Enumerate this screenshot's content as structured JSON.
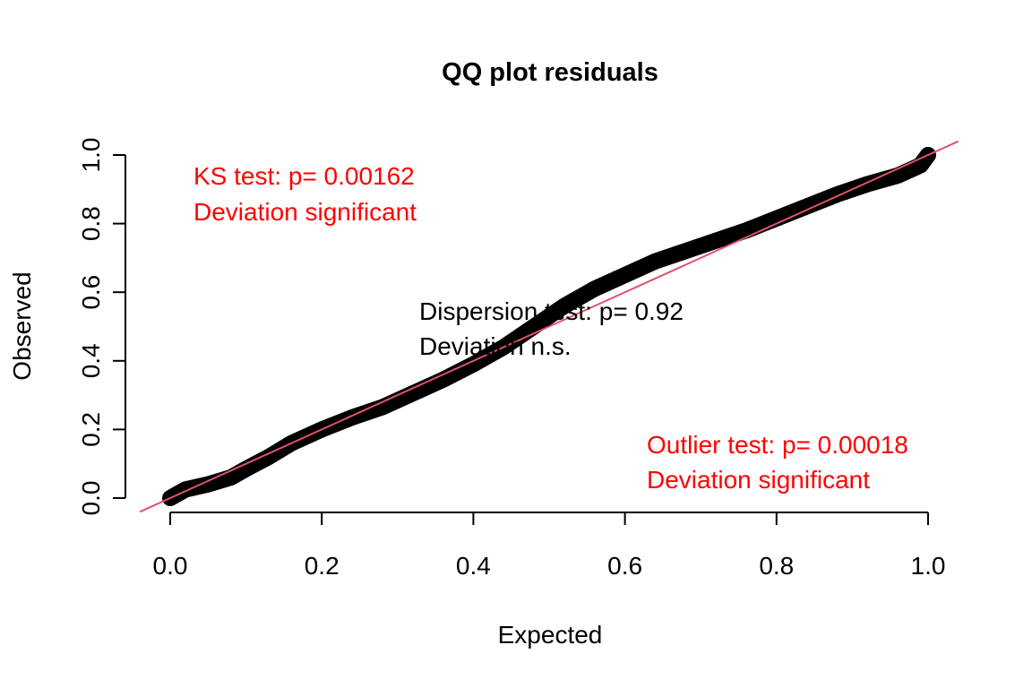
{
  "chart_data": {
    "type": "scatter",
    "title": "QQ plot residuals",
    "xlabel": "Expected",
    "ylabel": "Observed",
    "xlim": [
      0,
      1
    ],
    "ylim": [
      0,
      1
    ],
    "x_ticks": [
      "0.0",
      "0.2",
      "0.4",
      "0.6",
      "0.8",
      "1.0"
    ],
    "y_ticks": [
      "0.0",
      "0.2",
      "0.4",
      "0.6",
      "0.8",
      "1.0"
    ],
    "series": [
      {
        "points": [
          [
            0.0,
            0.0
          ],
          [
            0.02,
            0.025
          ],
          [
            0.05,
            0.04
          ],
          [
            0.08,
            0.06
          ],
          [
            0.1,
            0.085
          ],
          [
            0.13,
            0.12
          ],
          [
            0.16,
            0.16
          ],
          [
            0.2,
            0.2
          ],
          [
            0.24,
            0.235
          ],
          [
            0.28,
            0.265
          ],
          [
            0.32,
            0.305
          ],
          [
            0.36,
            0.345
          ],
          [
            0.4,
            0.39
          ],
          [
            0.44,
            0.44
          ],
          [
            0.48,
            0.5
          ],
          [
            0.52,
            0.56
          ],
          [
            0.56,
            0.61
          ],
          [
            0.6,
            0.65
          ],
          [
            0.64,
            0.69
          ],
          [
            0.68,
            0.72
          ],
          [
            0.72,
            0.75
          ],
          [
            0.76,
            0.78
          ],
          [
            0.8,
            0.815
          ],
          [
            0.84,
            0.85
          ],
          [
            0.88,
            0.885
          ],
          [
            0.92,
            0.915
          ],
          [
            0.96,
            0.94
          ],
          [
            0.99,
            0.97
          ],
          [
            1.0,
            1.0
          ]
        ],
        "color": "#000000"
      }
    ],
    "reference_line": {
      "intercept": 0,
      "slope": 1,
      "color": "#DF536B"
    },
    "annotations": {
      "ks": {
        "line1": "KS test: p= 0.00162",
        "line2": "Deviation  significant",
        "color": "#FF0000"
      },
      "dispersion": {
        "line1": "Dispersion test: p= 0.92",
        "line2": "Deviation  n.s.",
        "color": "#000000"
      },
      "outlier": {
        "line1": "Outlier test: p= 0.00018",
        "line2": "Deviation  significant",
        "color": "#FF0000"
      }
    },
    "grid": false,
    "legend": "none"
  }
}
